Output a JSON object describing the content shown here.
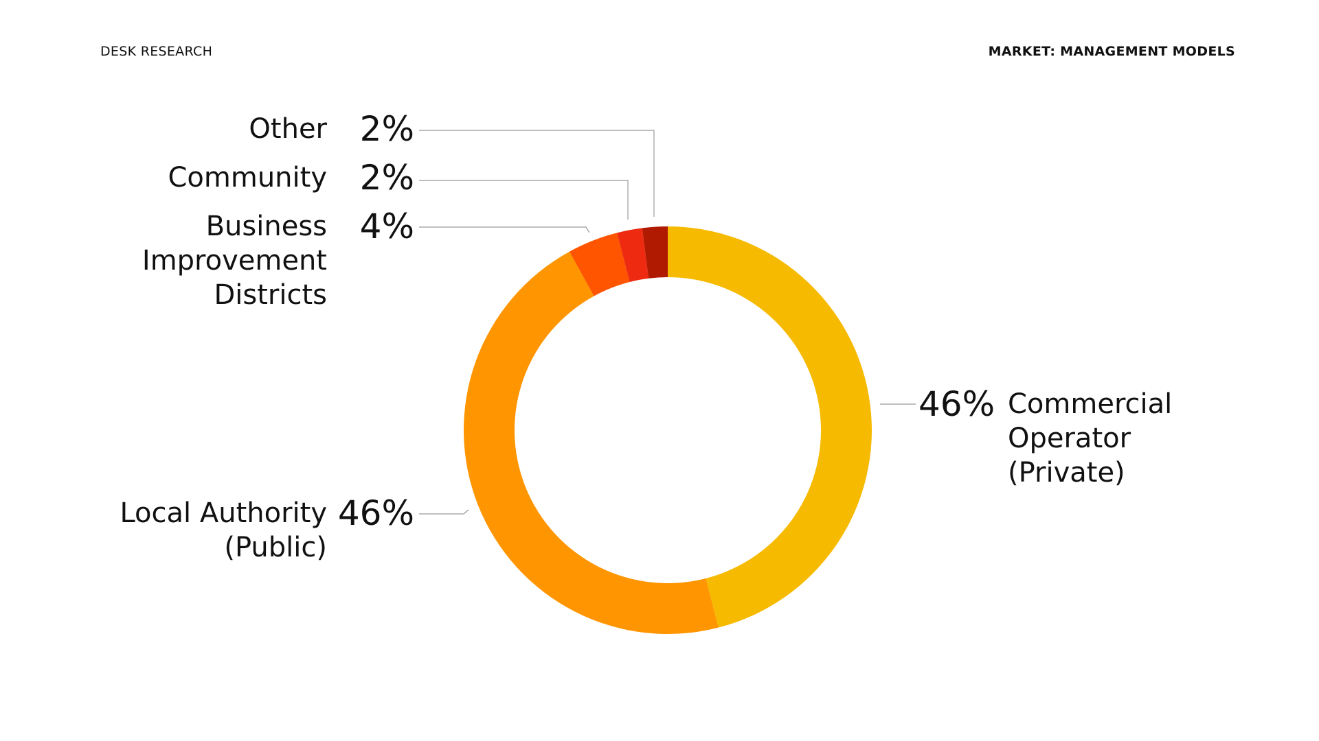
{
  "header": {
    "left": "DESK RESEARCH",
    "right": "MARKET: MANAGEMENT MODELS"
  },
  "chart_data": {
    "type": "donut",
    "categories": [
      "Commercial\nOperator\n(Private)",
      "Local Authority\n(Public)",
      "Business\nImprovement\nDistricts",
      "Community",
      "Other"
    ],
    "values": [
      46,
      46,
      4,
      2,
      2
    ],
    "value_labels": [
      "46%",
      "46%",
      "4%",
      "2%",
      "2%"
    ],
    "colors": [
      "#f6ba00",
      "#ff9500",
      "#ff5500",
      "#ee2a10",
      "#b01a00"
    ]
  }
}
